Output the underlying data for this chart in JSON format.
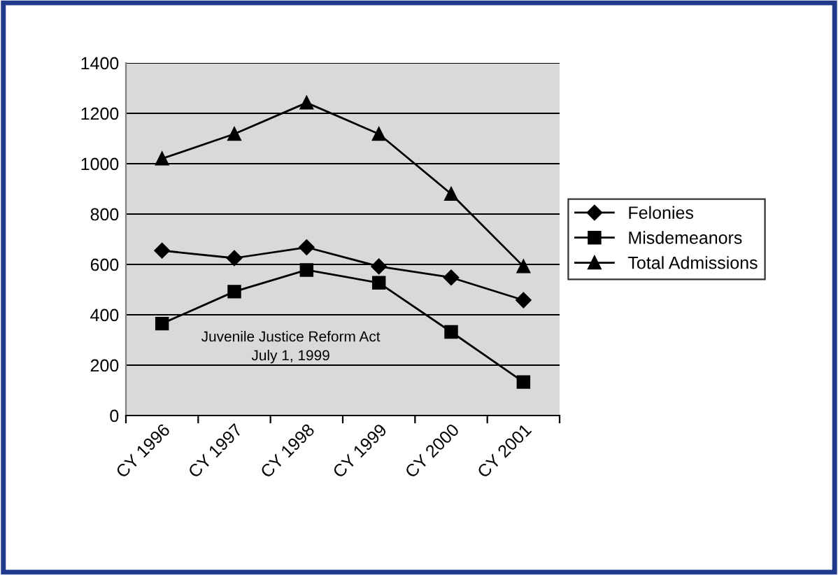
{
  "chart_data": {
    "type": "line",
    "categories": [
      "CY 1996",
      "CY 1997",
      "CY 1998",
      "CY 1999",
      "CY 2000",
      "CY 2001"
    ],
    "series": [
      {
        "name": "Felonies",
        "color": "#000000",
        "marker": "diamond",
        "values": [
          655,
          625,
          668,
          592,
          548,
          458
        ]
      },
      {
        "name": "Misdemeanors",
        "color": "#000000",
        "marker": "square",
        "values": [
          365,
          492,
          578,
          527,
          332,
          133
        ]
      },
      {
        "name": "Total Admissions",
        "color": "#000000",
        "marker": "triangle",
        "values": [
          1020,
          1118,
          1242,
          1118,
          880,
          592
        ]
      }
    ],
    "ylim": [
      0,
      1400
    ],
    "yticks": [
      0,
      200,
      400,
      600,
      800,
      1000,
      1200,
      1400
    ],
    "grid": "y",
    "legend": "right",
    "line_style": "solid",
    "annotations": [
      "Juvenile Justice Reform Act\nJuly 1, 1999"
    ]
  }
}
